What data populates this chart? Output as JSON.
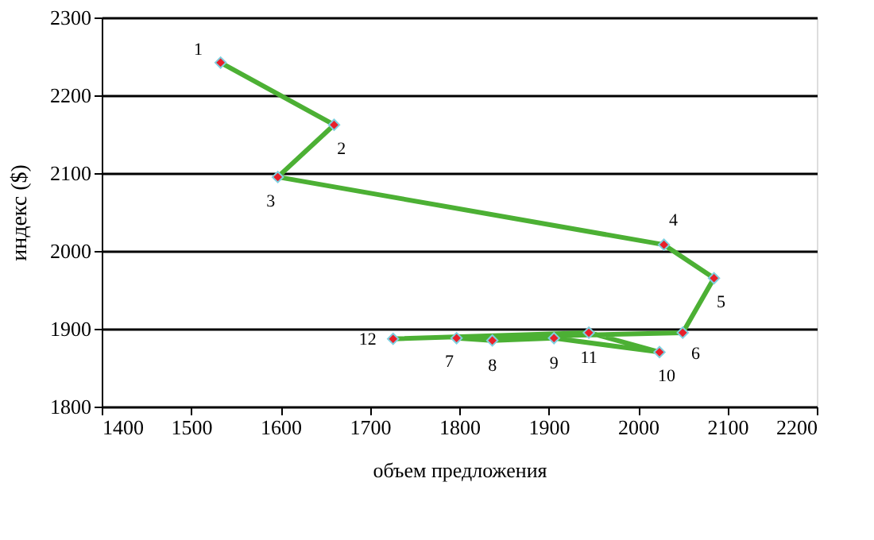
{
  "chart_data": {
    "type": "line",
    "xlabel": "объем предложения",
    "ylabel": "индекс ($)",
    "x": [
      1533,
      1660,
      1597,
      2029,
      2085,
      2050,
      1797,
      1837,
      1906,
      2024,
      1945,
      1726
    ],
    "series": [
      {
        "color": "#4cb034",
        "values": [
          2242,
          2162,
          2095,
          2008,
          1965,
          1895,
          1888,
          1885,
          1888,
          1870,
          1895,
          1887
        ]
      }
    ],
    "marker": "diamond",
    "line_style": "solid",
    "grid": "y",
    "xlim": [
      1400,
      2200
    ],
    "xticks": [
      1400,
      1500,
      1600,
      1700,
      1800,
      1900,
      2000,
      2100,
      2200
    ],
    "ylim": [
      1800,
      2300
    ],
    "yticks": [
      1800,
      1900,
      2000,
      2100,
      2200,
      2300
    ],
    "annotations": [
      {
        "text": "1",
        "x": 1533,
        "y": 2242
      },
      {
        "text": "2",
        "x": 1660,
        "y": 2162
      },
      {
        "text": "3",
        "x": 1597,
        "y": 2095
      },
      {
        "text": "4",
        "x": 2029,
        "y": 2008
      },
      {
        "text": "5",
        "x": 2085,
        "y": 1965
      },
      {
        "text": "6",
        "x": 2050,
        "y": 1895
      },
      {
        "text": "7",
        "x": 1797,
        "y": 1888
      },
      {
        "text": "8",
        "x": 1837,
        "y": 1885
      },
      {
        "text": "9",
        "x": 1906,
        "y": 1888
      },
      {
        "text": "10",
        "x": 2024,
        "y": 1870
      },
      {
        "text": "11",
        "x": 1945,
        "y": 1895
      },
      {
        "text": "12",
        "x": 1726,
        "y": 1887
      }
    ]
  }
}
